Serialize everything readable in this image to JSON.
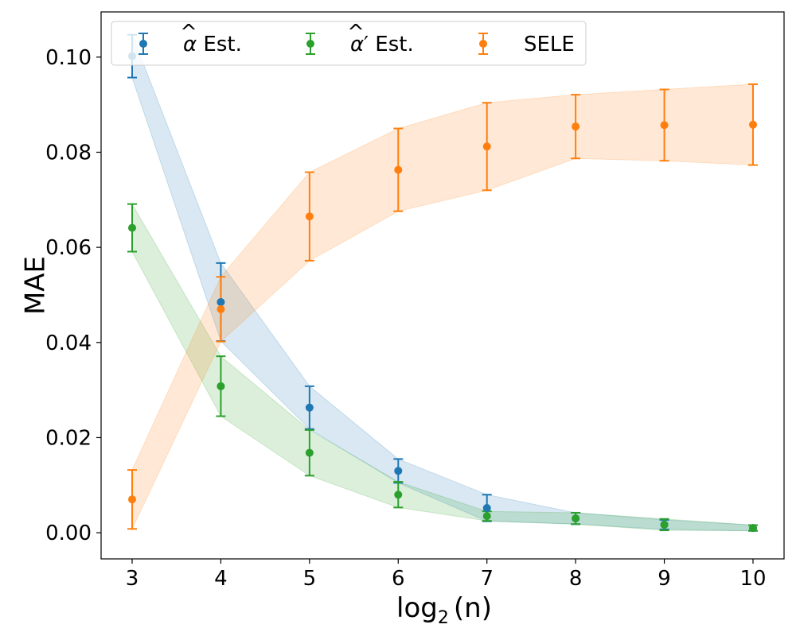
{
  "chart_data": {
    "type": "scatter",
    "title": "",
    "xlabel_prefix": "log",
    "xlabel_sub": "2",
    "xlabel_suffix": "(n)",
    "ylabel": "MAE",
    "xlim": [
      2.65,
      10.35
    ],
    "ylim": [
      -0.0055,
      0.1095
    ],
    "x_ticks": [
      3,
      4,
      5,
      6,
      7,
      8,
      9,
      10
    ],
    "x_tick_labels": [
      "3",
      "4",
      "5",
      "6",
      "7",
      "8",
      "9",
      "10"
    ],
    "y_ticks": [
      0.0,
      0.02,
      0.04,
      0.06,
      0.08,
      0.1
    ],
    "y_tick_labels": [
      "0.00",
      "0.02",
      "0.04",
      "0.06",
      "0.08",
      "0.10"
    ],
    "grid": false,
    "legend_position": "top-left",
    "series": [
      {
        "name": "α̂ Est.",
        "legend_base": "α",
        "legend_suffix": " Est.",
        "color": "#1f77b4",
        "x": [
          3,
          4,
          5,
          6,
          7,
          8,
          9,
          10
        ],
        "y": [
          0.1002,
          0.0485,
          0.0263,
          0.013,
          0.0052,
          0.003,
          0.0017,
          0.001
        ],
        "err": [
          0.0045,
          0.0082,
          0.0045,
          0.0025,
          0.0028,
          0.0012,
          0.001,
          0.0006
        ]
      },
      {
        "name": "α̂′ Est.",
        "legend_base": "α",
        "legend_suffix": "′ Est.",
        "color": "#2ca02c",
        "x": [
          3,
          4,
          5,
          6,
          7,
          8,
          9,
          10
        ],
        "y": [
          0.0641,
          0.0308,
          0.0168,
          0.008,
          0.0035,
          0.003,
          0.0017,
          0.001
        ],
        "err": [
          0.005,
          0.0063,
          0.0048,
          0.0027,
          0.001,
          0.0012,
          0.0012,
          0.0006
        ]
      },
      {
        "name": "SELE",
        "legend_base": "SELE",
        "legend_suffix": "",
        "color": "#ff7f0e",
        "x": [
          3,
          4,
          5,
          6,
          7,
          8,
          9,
          10
        ],
        "y": [
          0.007,
          0.047,
          0.0665,
          0.0763,
          0.0812,
          0.0854,
          0.0857,
          0.0858
        ],
        "err": [
          0.0062,
          0.0068,
          0.0093,
          0.0087,
          0.0092,
          0.0067,
          0.0075,
          0.0085
        ]
      }
    ]
  }
}
